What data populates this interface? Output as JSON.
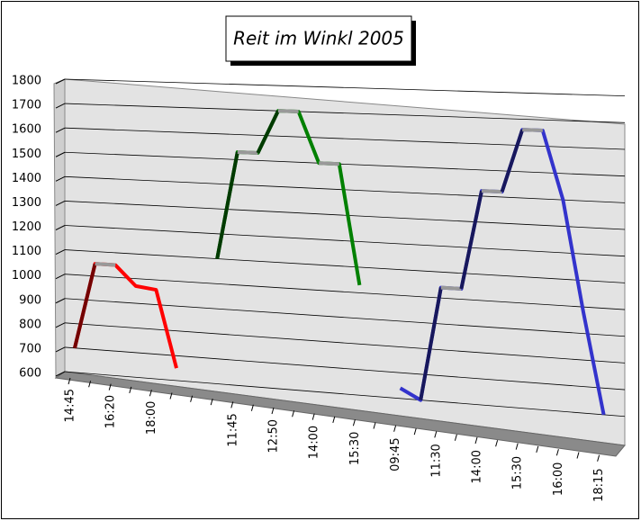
{
  "chart_data": {
    "type": "line3d",
    "title": "Reit im Winkl 2005",
    "categories": [
      "14:45",
      null,
      "16:20",
      null,
      "18:00",
      null,
      null,
      null,
      "11:45",
      null,
      "12:50",
      null,
      "14:00",
      null,
      "15:30",
      null,
      "09:45",
      null,
      "11:30",
      null,
      "14:00",
      null,
      "15:30",
      null,
      "16:00",
      null,
      "18:15"
    ],
    "series": [
      {
        "color": "#ff0000",
        "values": [
          700,
          1050,
          1050,
          970,
          960,
          650,
          null,
          null,
          null,
          null,
          null,
          null,
          null,
          null,
          null,
          null,
          null,
          null,
          null,
          null,
          null,
          null,
          null,
          null,
          null,
          null,
          null
        ]
      },
      {
        "color": "#008000",
        "values": [
          null,
          null,
          null,
          null,
          null,
          null,
          null,
          1100,
          1530,
          1530,
          1700,
          1700,
          1500,
          1500,
          1030,
          null,
          null,
          null,
          null,
          null,
          null,
          null,
          null,
          null,
          null,
          null,
          null
        ]
      },
      {
        "color": "#3333cc",
        "values": [
          null,
          null,
          null,
          null,
          null,
          null,
          null,
          null,
          null,
          null,
          null,
          null,
          null,
          null,
          null,
          null,
          640,
          600,
          1040,
          1040,
          1420,
          1420,
          1660,
          1660,
          1400,
          980,
          600
        ]
      }
    ],
    "ylim": [
      600,
      1800
    ],
    "yticks": [
      600,
      700,
      800,
      900,
      1000,
      1100,
      1200,
      1300,
      1400,
      1500,
      1600,
      1700,
      1800
    ],
    "grid": true
  }
}
